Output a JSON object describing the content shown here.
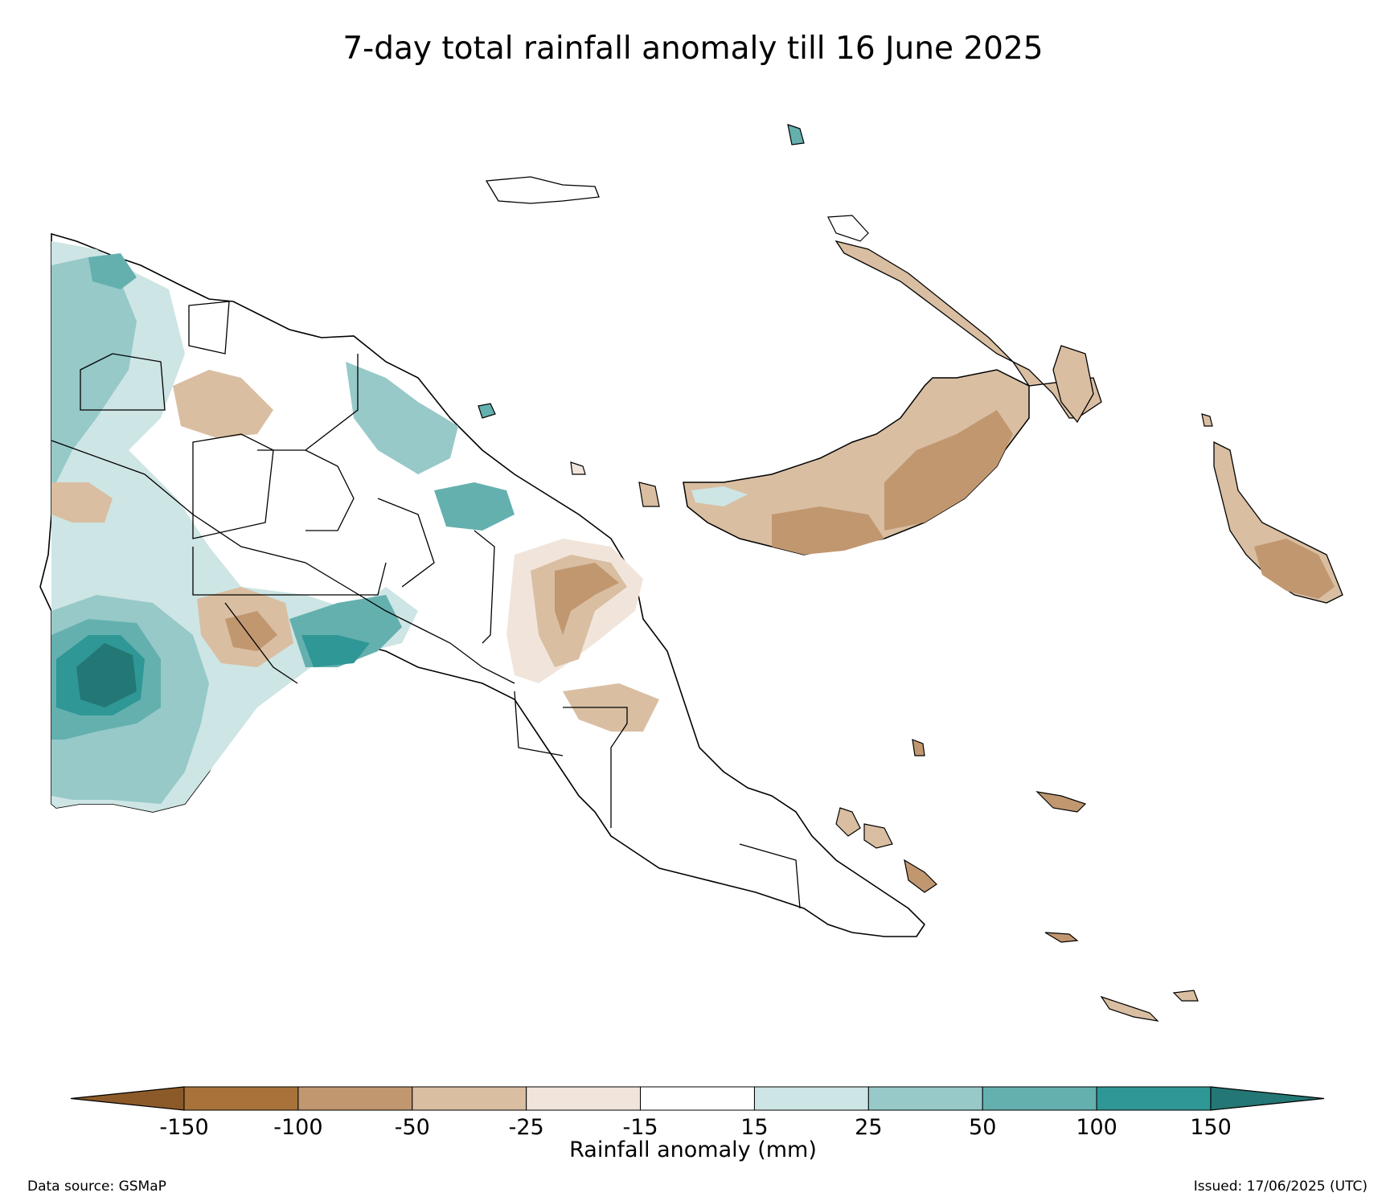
{
  "title": "7-day total rainfall anomaly till 16 June 2025",
  "colorbar": {
    "label": "Rainfall anomaly (mm)",
    "ticks": [
      "-150",
      "-100",
      "-50",
      "-25",
      "-15",
      "15",
      "25",
      "50",
      "100",
      "150"
    ],
    "bins": [
      {
        "range": "< -150",
        "color": "#8c5a29"
      },
      {
        "range": "-150 to -100",
        "color": "#a8733a"
      },
      {
        "range": "-100 to -50",
        "color": "#c19770"
      },
      {
        "range": "-50 to -25",
        "color": "#d9bea2"
      },
      {
        "range": "-25 to -15",
        "color": "#f1e5db"
      },
      {
        "range": "-15 to 15",
        "color": "#ffffff"
      },
      {
        "range": "15 to 25",
        "color": "#cde5e4"
      },
      {
        "range": "25 to 50",
        "color": "#96c9c8"
      },
      {
        "range": "50 to 100",
        "color": "#64b0af"
      },
      {
        "range": "100 to 150",
        "color": "#2f9795"
      },
      {
        "range": "> 150",
        "color": "#237774"
      }
    ]
  },
  "footer": {
    "source": "Data source: GSMaP",
    "issued": "Issued: 17/06/2025 (UTC)"
  }
}
